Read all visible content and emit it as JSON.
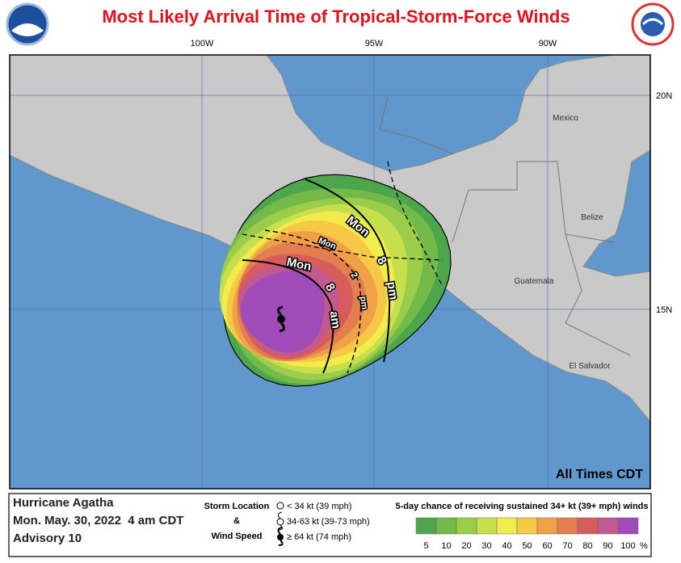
{
  "title": "Most Likely Arrival Time of Tropical-Storm-Force Winds",
  "map": {
    "longitude_labels": [
      "100W",
      "95W",
      "90W"
    ],
    "latitude_labels": [
      "20N",
      "15N"
    ],
    "place_labels": [
      "Mexico",
      "Belize",
      "Guatemala",
      "El Salvador"
    ],
    "arrival_labels": [
      {
        "day": "Mon",
        "hour": "8",
        "period": "am"
      },
      {
        "day": "Mon",
        "hour": "2",
        "period": "pm"
      },
      {
        "day": "Mon",
        "hour": "8",
        "period": "pm"
      }
    ],
    "note": "All Times CDT"
  },
  "footer": {
    "storm": "Hurricane Agatha",
    "date": "Mon. May. 30, 2022  4 am CDT",
    "advisory": "Advisory 10",
    "storm_location_legend": {
      "title_lines": [
        "Storm Location",
        "&",
        "Wind Speed"
      ],
      "items": [
        "< 34 kt (39 mph)",
        "34-63 kt (39-73 mph)",
        "≥ 64 kt (74 mph)"
      ]
    },
    "probability_legend": {
      "title": "5-day chance of receiving sustained 34+ kt (39+ mph) winds",
      "levels": [
        {
          "label": "5",
          "color": "#4ea64c"
        },
        {
          "label": "10",
          "color": "#73ba48"
        },
        {
          "label": "20",
          "color": "#9bcd4a"
        },
        {
          "label": "30",
          "color": "#c6df4c"
        },
        {
          "label": "40",
          "color": "#f1ec4c"
        },
        {
          "label": "50",
          "color": "#f6c846"
        },
        {
          "label": "60",
          "color": "#f0a046"
        },
        {
          "label": "70",
          "color": "#e57e4e"
        },
        {
          "label": "80",
          "color": "#d75d5d"
        },
        {
          "label": "90",
          "color": "#c25a90"
        },
        {
          "label": "100",
          "color": "#a04cb8"
        }
      ],
      "unit": "%"
    }
  }
}
